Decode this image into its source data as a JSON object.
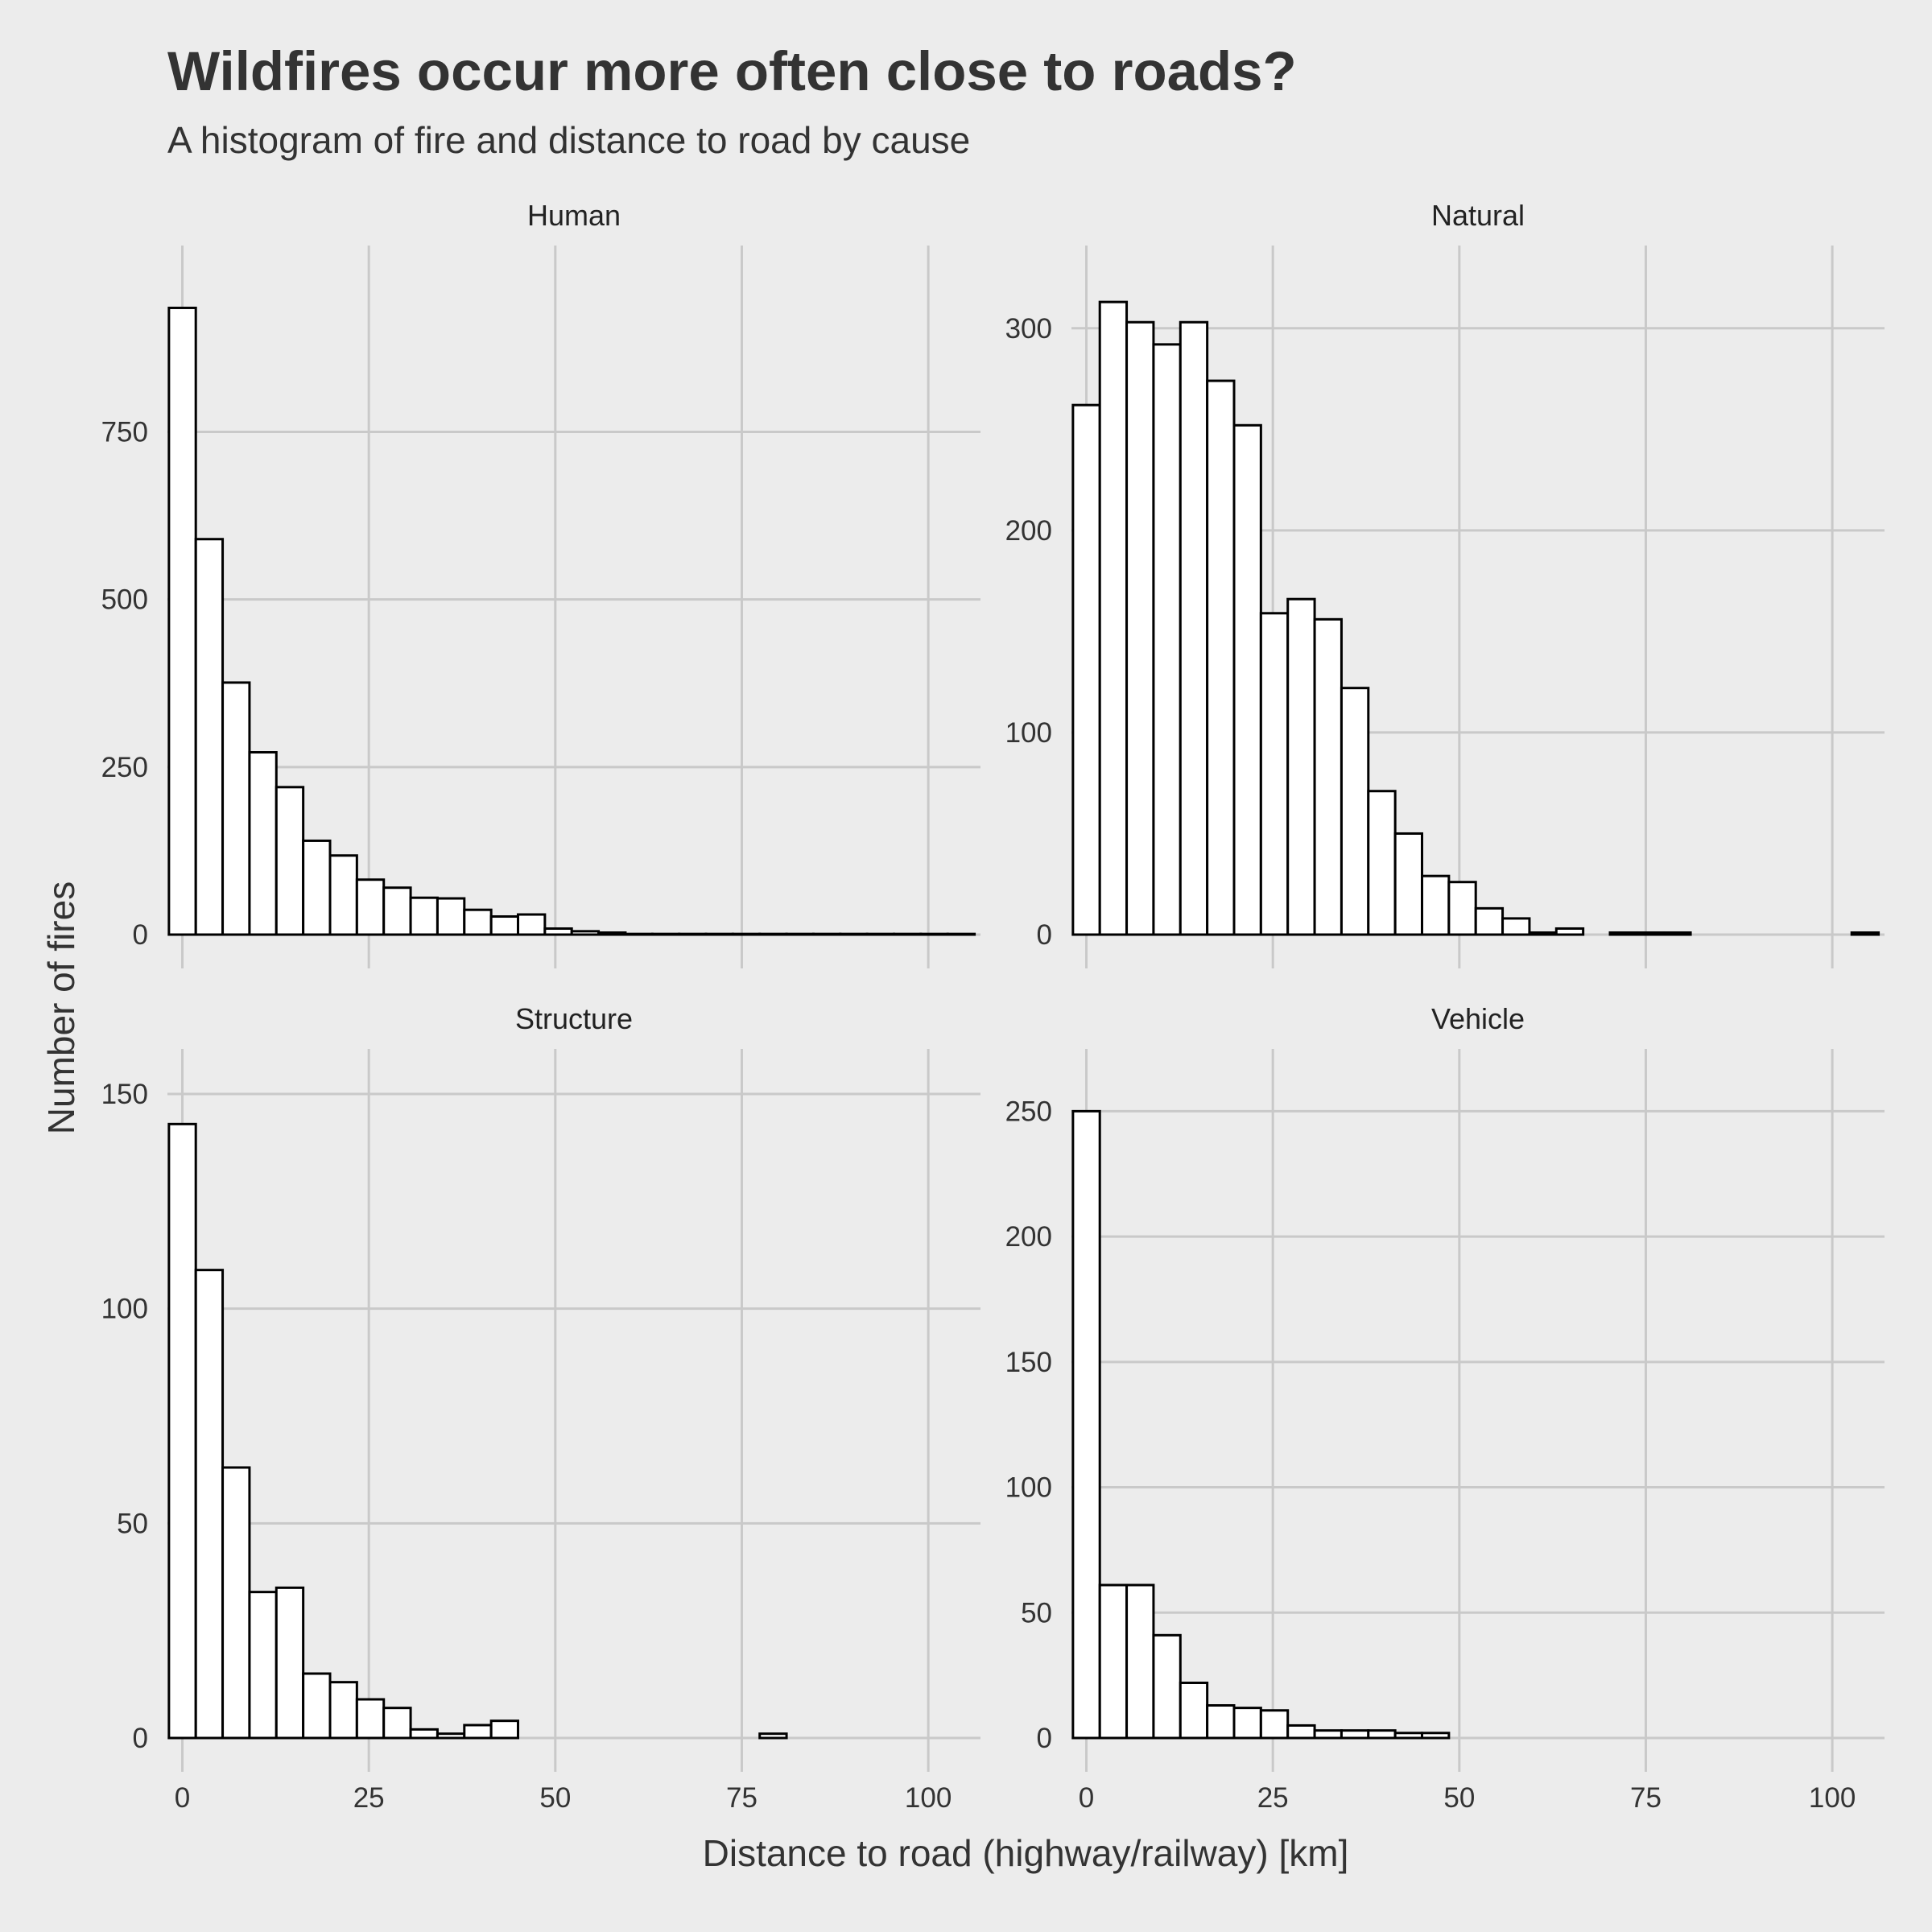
{
  "chart_data": {
    "type": "bar",
    "title": "Wildfires occur more often close to roads?",
    "subtitle": "A histogram of fire and distance to road by cause",
    "xlabel": "Distance to road (highway/railway) [km]",
    "ylabel": "Number of fires",
    "x_ticks": [
      0,
      25,
      50,
      75,
      100
    ],
    "xlim": [
      -2,
      107
    ],
    "bin_width": 3.6,
    "bin_start": -1.8,
    "grid": true,
    "panels": [
      {
        "name": "Human",
        "ylim": [
          0,
          980
        ],
        "y_ticks": [
          0,
          250,
          500,
          750
        ],
        "values": [
          935,
          590,
          376,
          272,
          220,
          140,
          118,
          82,
          70,
          55,
          54,
          37,
          27,
          30,
          9,
          5,
          3,
          1,
          1,
          1,
          1,
          1,
          1,
          1,
          1,
          1,
          1,
          1,
          1,
          1
        ]
      },
      {
        "name": "Natural",
        "ylim": [
          0,
          325
        ],
        "y_ticks": [
          0,
          100,
          200,
          300
        ],
        "values": [
          262,
          313,
          303,
          292,
          303,
          274,
          252,
          159,
          166,
          156,
          122,
          71,
          50,
          29,
          26,
          13,
          8,
          1,
          3,
          0,
          1,
          1,
          1,
          0,
          0,
          0,
          0,
          0,
          0,
          1
        ]
      },
      {
        "name": "Structure",
        "ylim": [
          0,
          153
        ],
        "y_ticks": [
          0,
          50,
          100,
          150
        ],
        "values": [
          143,
          109,
          63,
          34,
          35,
          15,
          13,
          9,
          7,
          2,
          1,
          3,
          4,
          0,
          0,
          0,
          0,
          0,
          0,
          0,
          0,
          0,
          1,
          0,
          0,
          0,
          0,
          0,
          0,
          0
        ]
      },
      {
        "name": "Vehicle",
        "ylim": [
          0,
          262
        ],
        "y_ticks": [
          0,
          50,
          100,
          150,
          200,
          250
        ],
        "values": [
          250,
          61,
          61,
          41,
          22,
          13,
          12,
          11,
          5,
          3,
          3,
          3,
          2,
          2,
          0,
          0,
          0,
          0,
          0,
          0,
          0,
          0,
          0,
          0,
          0,
          0,
          0,
          0,
          0,
          0
        ]
      }
    ]
  }
}
